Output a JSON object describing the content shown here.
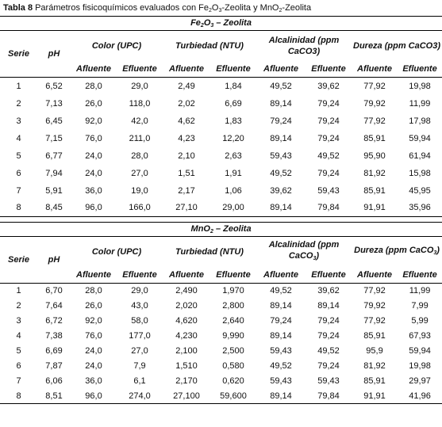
{
  "caption": {
    "label": "Tabla 8",
    "text": [
      "Parámetros fisicoquímicos evaluados con Fe",
      {
        "sub": "2"
      },
      "O",
      {
        "sub": "3"
      },
      "-Zeolita y MnO",
      {
        "sub": "2"
      },
      "-Zeolita"
    ]
  },
  "tables": [
    {
      "title": [
        "Fe",
        {
          "sub": "2"
        },
        "O",
        {
          "sub": "3"
        },
        " – Zeolita"
      ],
      "headers": {
        "serie": "Serie",
        "ph": "pH",
        "groups": [
          [
            "Color (UPC)"
          ],
          [
            "Turbiedad (NTU)"
          ],
          [
            "Alcalinidad (ppm CaCO3)"
          ],
          [
            "Dureza (ppm CaCO3)"
          ]
        ],
        "subheaders": [
          "Afluente",
          "Efluente",
          "Afluente",
          "Efluente",
          "Afluente",
          "Efluente",
          "Afluente",
          "Efluente"
        ]
      },
      "rows": [
        [
          "1",
          "6,52",
          "28,0",
          "29,0",
          "2,49",
          "1,84",
          "49,52",
          "39,62",
          "77,92",
          "19,98"
        ],
        [
          "2",
          "7,13",
          "26,0",
          "118,0",
          "2,02",
          "6,69",
          "89,14",
          "79,24",
          "79,92",
          "11,99"
        ],
        [
          "3",
          "6,45",
          "92,0",
          "42,0",
          "4,62",
          "1,83",
          "79,24",
          "79,24",
          "77,92",
          "17,98"
        ],
        [
          "4",
          "7,15",
          "76,0",
          "211,0",
          "4,23",
          "12,20",
          "89,14",
          "79,24",
          "85,91",
          "59,94"
        ],
        [
          "5",
          "6,77",
          "24,0",
          "28,0",
          "2,10",
          "2,63",
          "59,43",
          "49,52",
          "95,90",
          "61,94"
        ],
        [
          "6",
          "7,94",
          "24,0",
          "27,0",
          "1,51",
          "1,91",
          "49,52",
          "79,24",
          "81,92",
          "15,98"
        ],
        [
          "7",
          "5,91",
          "36,0",
          "19,0",
          "2,17",
          "1,06",
          "39,62",
          "59,43",
          "85,91",
          "45,95"
        ],
        [
          "8",
          "8,45",
          "96,0",
          "166,0",
          "27,10",
          "29,00",
          "89,14",
          "79,84",
          "91,91",
          "35,96"
        ]
      ]
    },
    {
      "title": [
        "MnO",
        {
          "sub": "2"
        },
        " – Zeolita"
      ],
      "headers": {
        "serie": "Serie",
        "ph": "pH",
        "groups": [
          [
            "Color (UPC)"
          ],
          [
            "Turbiedad (NTU)"
          ],
          [
            "Alcalinidad (ppm CaCO",
            {
              "sub": "3"
            },
            ")"
          ],
          [
            "Dureza (ppm CaCO",
            {
              "sub": "3"
            },
            ")"
          ]
        ],
        "subheaders": [
          "Afluente",
          "Efluente",
          "Afluente",
          "Efluente",
          "Afluente",
          "Efluente",
          "Afluente",
          "Efluente"
        ]
      },
      "rows": [
        [
          "1",
          "6,70",
          "28,0",
          "29,0",
          "2,490",
          "1,970",
          "49,52",
          "39,62",
          "77,92",
          "11,99"
        ],
        [
          "2",
          "7,64",
          "26,0",
          "43,0",
          "2,020",
          "2,800",
          "89,14",
          "89,14",
          "79,92",
          "7,99"
        ],
        [
          "3",
          "6,72",
          "92,0",
          "58,0",
          "4,620",
          "2,640",
          "79,24",
          "79,24",
          "77,92",
          "5,99"
        ],
        [
          "4",
          "7,38",
          "76,0",
          "177,0",
          "4,230",
          "9,990",
          "89,14",
          "79,24",
          "85,91",
          "67,93"
        ],
        [
          "5",
          "6,69",
          "24,0",
          "27,0",
          "2,100",
          "2,500",
          "59,43",
          "49,52",
          "95,9",
          "59,94"
        ],
        [
          "6",
          "7,87",
          "24,0",
          "7,9",
          "1,510",
          "0,580",
          "49,52",
          "79,24",
          "81,92",
          "19,98"
        ],
        [
          "7",
          "6,06",
          "36,0",
          "6,1",
          "2,170",
          "0,620",
          "59,43",
          "59,43",
          "85,91",
          "29,97"
        ],
        [
          "8",
          "8,51",
          "96,0",
          "274,0",
          "27,100",
          "59,600",
          "89,14",
          "79,84",
          "91,91",
          "41,96"
        ]
      ]
    }
  ]
}
